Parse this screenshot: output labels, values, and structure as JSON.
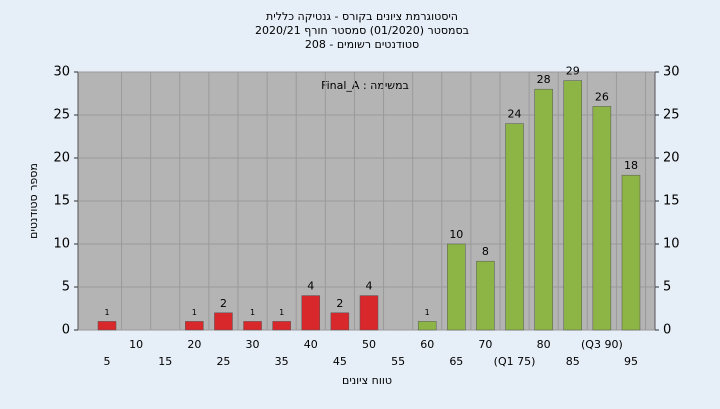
{
  "chart_data": {
    "type": "bar",
    "title": "היסטוגרמת ציונים בקורס - גנטיקה כללית",
    "subtitle": "בסמסטר  (01/2020)  סמסטר חורף 2020/21",
    "subtitle2": "סטודנטים רשומים - 208",
    "annotation": "Final_A : במשימה",
    "x_label": "טווח ציונים",
    "y_label": "מספר סטודנטים",
    "categories": [
      "5",
      "10",
      "15",
      "20",
      "25",
      "30",
      "35",
      "40",
      "45",
      "50",
      "55",
      "60",
      "65",
      "70",
      "(Q1 75)",
      "80",
      "85",
      "(Q3 90)",
      "95"
    ],
    "values": [
      1,
      0,
      0,
      1,
      2,
      1,
      1,
      4,
      2,
      4,
      0,
      1,
      10,
      8,
      24,
      28,
      29,
      26,
      18
    ],
    "colors": [
      "#d8282c",
      "#d8282c",
      "#d8282c",
      "#d8282c",
      "#d8282c",
      "#d8282c",
      "#d8282c",
      "#d8282c",
      "#d8282c",
      "#d8282c",
      "#d8282c",
      "#8cb545",
      "#8cb545",
      "#8cb545",
      "#8cb545",
      "#8cb545",
      "#8cb545",
      "#8cb545",
      "#8cb545"
    ],
    "ylim": [
      0,
      30
    ],
    "yticks": [
      0,
      5,
      10,
      15,
      20,
      25,
      30
    ],
    "y2lim": [
      0,
      30
    ],
    "y2ticks": [
      0,
      5,
      10,
      15,
      20,
      25,
      30
    ],
    "grid": true
  }
}
